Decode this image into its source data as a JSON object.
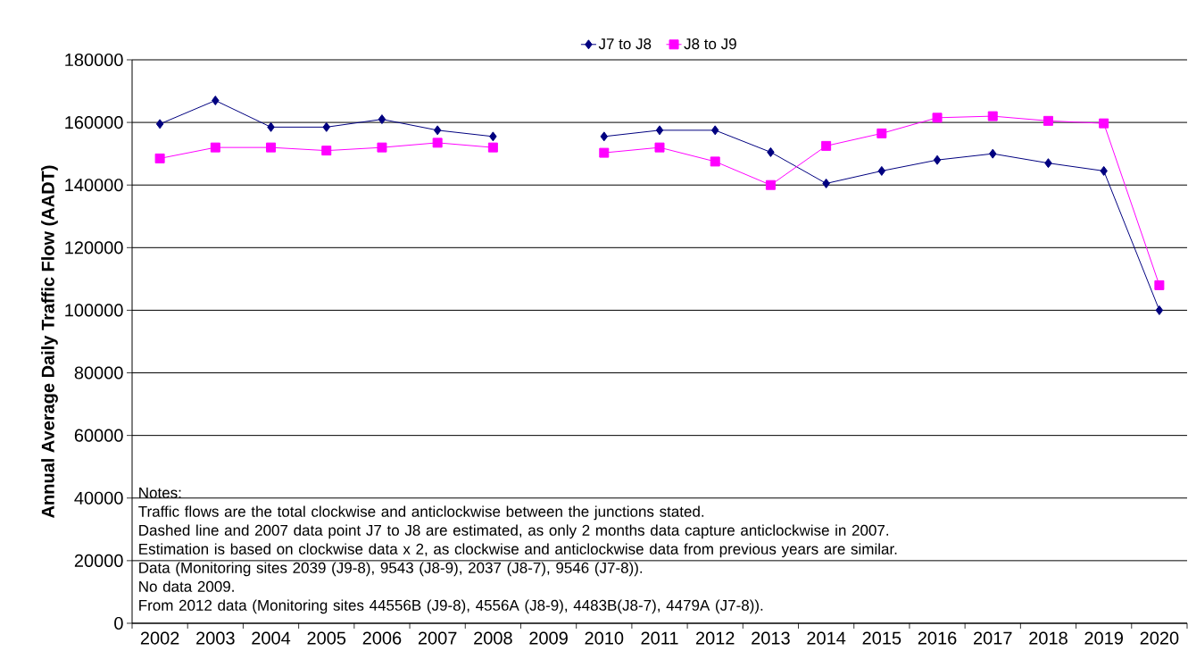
{
  "chart_data": {
    "type": "line",
    "ylabel": "Annual Average Daily Traffic Flow (AADT)",
    "categories": [
      "2002",
      "2003",
      "2004",
      "2005",
      "2006",
      "2007",
      "2008",
      "2009",
      "2010",
      "2011",
      "2012",
      "2013",
      "2014",
      "2015",
      "2016",
      "2017",
      "2018",
      "2019",
      "2020"
    ],
    "series": [
      {
        "name": "J7 to J8",
        "color": "#000080",
        "marker": "diamond",
        "values": [
          159500,
          167000,
          158500,
          158500,
          161000,
          157500,
          155500,
          null,
          155500,
          157500,
          157500,
          150500,
          140500,
          144500,
          148000,
          150000,
          147000,
          144500,
          100000
        ]
      },
      {
        "name": "J8 to J9",
        "color": "#ff00ff",
        "marker": "square",
        "values": [
          148500,
          152000,
          152000,
          151000,
          152000,
          153500,
          152000,
          null,
          150300,
          152000,
          147500,
          140000,
          152500,
          156500,
          161500,
          162000,
          160500,
          159700,
          108000
        ]
      }
    ],
    "ylim": [
      0,
      180000
    ],
    "yticks": [
      0,
      20000,
      40000,
      60000,
      80000,
      100000,
      120000,
      140000,
      160000,
      180000
    ],
    "grid": "y",
    "legend": "top",
    "annotations": [
      "Notes:",
      "Traffic flows are the total clockwise and anticlockwise between the junctions stated.",
      "Dashed line and 2007 data point J7 to J8 are estimated, as only 2 months data capture anticlockwise in 2007.",
      "Estimation is based on clockwise data x 2, as clockwise and anticlockwise data from previous years are similar.",
      "Data (Monitoring sites 2039 (J9-8), 9543 (J8-9), 2037 (J8-7), 9546 (J7-8)).",
      "No data 2009.",
      "From 2012 data (Monitoring sites 44556B (J9-8), 4556A (J8-9), 4483B(J8-7), 4479A (J7-8))."
    ]
  }
}
